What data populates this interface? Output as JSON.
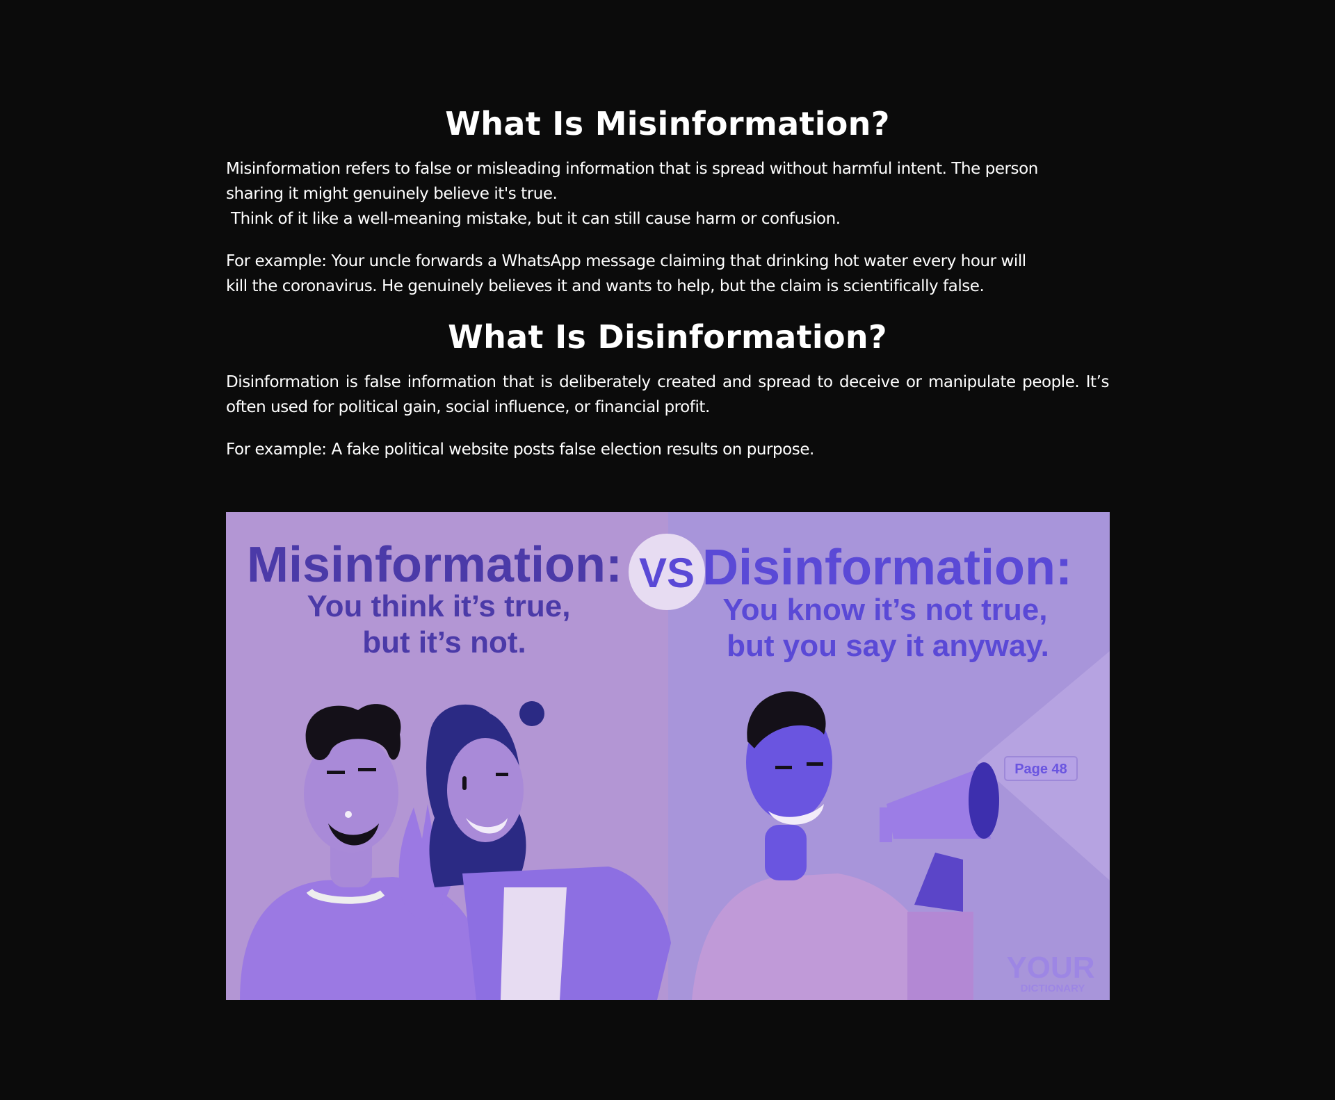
{
  "article": {
    "misinformation": {
      "heading": "What Is Misinformation?",
      "para1_line1": "Misinformation refers to false or misleading information that is spread without harmful intent. The person",
      "para1_line2": "sharing it might genuinely believe it's true.",
      "para1_line3": "Think of it like a well-meaning mistake, but it can still cause harm or confusion.",
      "example_line1": "For example: Your uncle forwards a WhatsApp message claiming that drinking hot water every hour will",
      "example_line2": "kill the coronavirus. He genuinely believes it and wants to help, but the claim is scientifically false."
    },
    "disinformation": {
      "heading": "What Is Disinformation?",
      "para1": "Disinformation is false information that is deliberately created and spread to deceive or manipulate people. It’s often used for political gain, social influence, or financial profit.",
      "example": "For example: A fake political website posts false election results on purpose."
    }
  },
  "illustration": {
    "left_title": "Misinformation:",
    "left_sub_line1": "You think it’s true,",
    "left_sub_line2": "but it’s not.",
    "vs_label": "VS",
    "right_title": "Disinformation:",
    "right_sub_line1": "You know it’s not true,",
    "right_sub_line2": "but you say it anyway.",
    "page_tag": "Page 48",
    "logo_line1": "YOUR",
    "logo_line2": "DICTIONARY"
  },
  "colors": {
    "page_background": "#0b0b0b",
    "text": "#ffffff",
    "left_panel": "#b396d4",
    "right_panel": "#a895da",
    "title_left": "#4b3aa8",
    "title_right": "#5a49d6"
  }
}
